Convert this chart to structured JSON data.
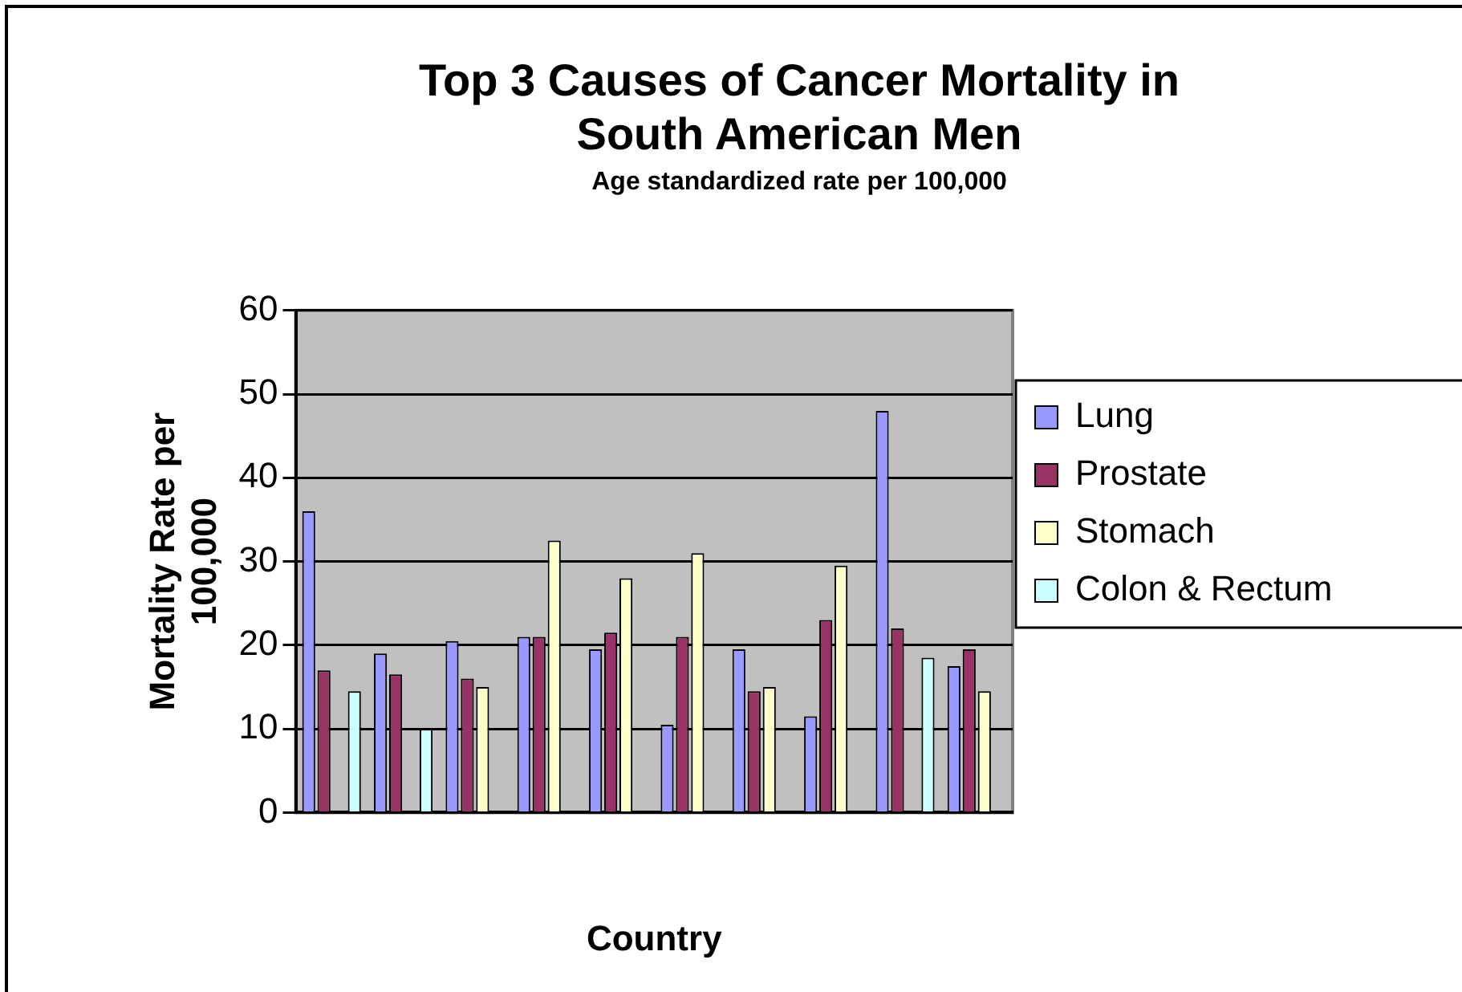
{
  "chart_data": {
    "type": "bar",
    "title": "Top 3 Causes of Cancer Mortality in South American Men",
    "subtitle": "Age standardized rate per 100,000",
    "xlabel": "Country",
    "ylabel": "Mortality Rate per 100,000",
    "categories": [
      null,
      null,
      null,
      null,
      null,
      null,
      null,
      null,
      null,
      null
    ],
    "series": [
      {
        "name": "Lung",
        "color": "#9999ff",
        "values": [
          36,
          19,
          20.5,
          21,
          19.5,
          10.5,
          19.5,
          11.5,
          48,
          17.5
        ]
      },
      {
        "name": "Prostate",
        "color": "#993366",
        "values": [
          17,
          16.5,
          16,
          21,
          21.5,
          21,
          14.5,
          23,
          22,
          19.5
        ]
      },
      {
        "name": "Stomach",
        "color": "#ffffcc",
        "values": [
          null,
          null,
          15,
          32.5,
          28,
          31,
          15,
          29.5,
          null,
          14.5
        ]
      },
      {
        "name": "Colon & Rectum",
        "color": "#ccffff",
        "values": [
          14.5,
          10,
          null,
          null,
          null,
          null,
          null,
          null,
          18.5,
          null
        ]
      }
    ],
    "ylim": [
      0,
      60
    ],
    "yticks": [
      0,
      10,
      20,
      30,
      40,
      50,
      60
    ],
    "grid": "y",
    "legend": "right"
  }
}
